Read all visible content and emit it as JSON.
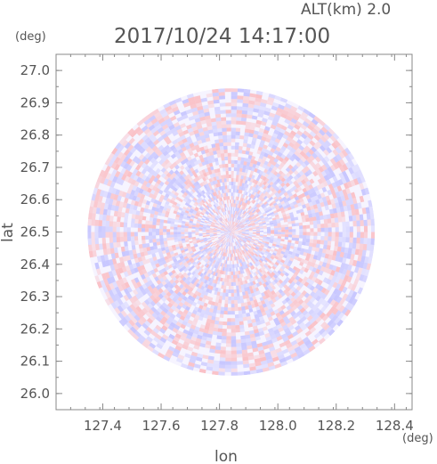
{
  "chart_data": {
    "type": "heatmap",
    "title": "2017/10/24 14:17:00",
    "altitude_label": "ALT(km) 2.0",
    "xlabel": "lon",
    "ylabel": "lat",
    "x_unit": "(deg)",
    "y_unit": "(deg)",
    "xlim": [
      127.24,
      128.46
    ],
    "ylim": [
      25.95,
      27.05
    ],
    "x_ticks": [
      127.4,
      127.6,
      127.8,
      128.0,
      128.2,
      128.4
    ],
    "x_tick_labels": [
      "127.4",
      "127.6",
      "127.8",
      "128.0",
      "128.2",
      "128.4"
    ],
    "y_ticks": [
      26.0,
      26.1,
      26.2,
      26.3,
      26.4,
      26.5,
      26.6,
      26.7,
      26.8,
      26.9,
      27.0
    ],
    "y_tick_labels": [
      "26.0",
      "26.1",
      "26.2",
      "26.3",
      "26.4",
      "26.5",
      "26.6",
      "26.7",
      "26.8",
      "26.9",
      "27.0"
    ],
    "center": [
      127.84,
      26.5
    ],
    "range_lat_deg": 0.445,
    "colors": {
      "positive": "#ff8c8c",
      "negative": "#9a9aff",
      "axis": "#888888",
      "text": "#555555"
    }
  }
}
